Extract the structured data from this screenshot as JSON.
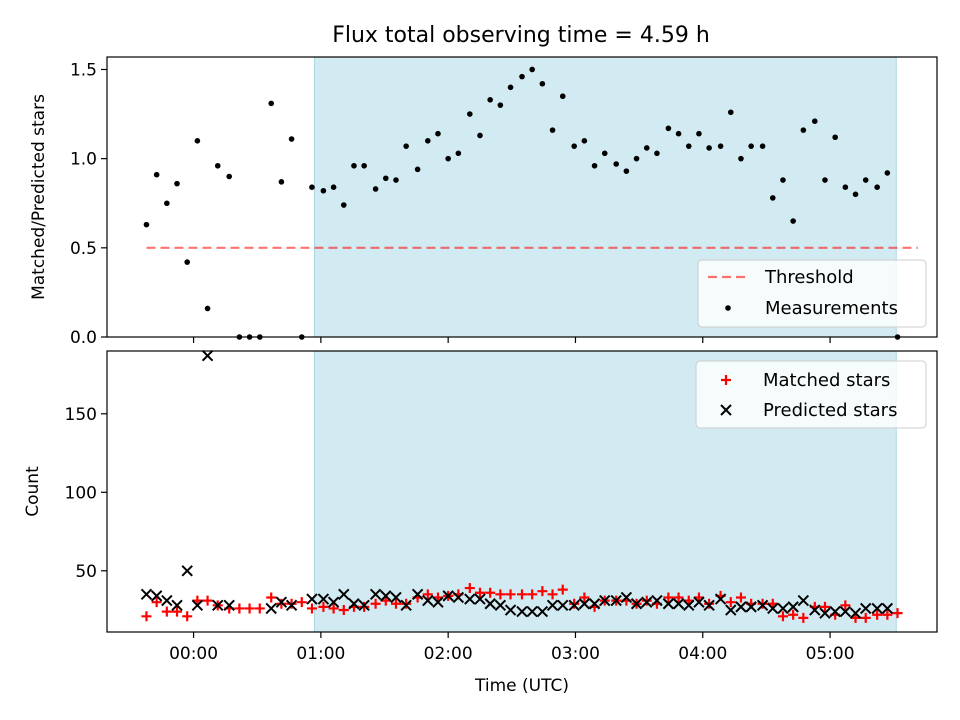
{
  "title": "Flux total observing time = 4.59 h",
  "colors": {
    "shade": "#add8e6",
    "threshold": "#ff0000",
    "measurements": "#000000",
    "matched": "#ff0000",
    "predicted": "#000000"
  },
  "chart_data": [
    {
      "type": "scatter",
      "ylabel": "Matched/Predicted stars",
      "xlim": [
        -0.68,
        5.84
      ],
      "ylim": [
        0,
        1.57
      ],
      "yticks": [
        0.0,
        0.5,
        1.0,
        1.5
      ],
      "ytick_labels": [
        "0.0",
        "0.5",
        "1.0",
        "1.5"
      ],
      "shaded_x_range": [
        0.95,
        5.52
      ],
      "threshold": {
        "name": "Threshold",
        "value": 0.5,
        "x_range": [
          -0.37,
          5.69
        ]
      },
      "legend": {
        "location": "lower-right",
        "entries": [
          "Threshold",
          "Measurements"
        ]
      },
      "series": [
        {
          "name": "Measurements",
          "marker": "dot",
          "points": [
            [
              -0.37,
              0.63
            ],
            [
              -0.29,
              0.91
            ],
            [
              -0.21,
              0.75
            ],
            [
              -0.13,
              0.86
            ],
            [
              -0.05,
              0.42
            ],
            [
              0.03,
              1.1
            ],
            [
              0.11,
              0.16
            ],
            [
              0.19,
              0.96
            ],
            [
              0.28,
              0.9
            ],
            [
              0.36,
              0.0
            ],
            [
              0.44,
              0.0
            ],
            [
              0.52,
              0.0
            ],
            [
              0.61,
              1.31
            ],
            [
              0.69,
              0.87
            ],
            [
              0.77,
              1.11
            ],
            [
              0.85,
              0.0
            ],
            [
              0.93,
              0.84
            ],
            [
              1.02,
              0.82
            ],
            [
              1.1,
              0.84
            ],
            [
              1.18,
              0.74
            ],
            [
              1.26,
              0.96
            ],
            [
              1.34,
              0.96
            ],
            [
              1.43,
              0.83
            ],
            [
              1.51,
              0.89
            ],
            [
              1.59,
              0.88
            ],
            [
              1.67,
              1.07
            ],
            [
              1.76,
              0.94
            ],
            [
              1.84,
              1.1
            ],
            [
              1.92,
              1.14
            ],
            [
              2.0,
              1.0
            ],
            [
              2.08,
              1.03
            ],
            [
              2.17,
              1.25
            ],
            [
              2.25,
              1.13
            ],
            [
              2.33,
              1.33
            ],
            [
              2.41,
              1.3
            ],
            [
              2.49,
              1.4
            ],
            [
              2.58,
              1.46
            ],
            [
              2.66,
              1.5
            ],
            [
              2.74,
              1.42
            ],
            [
              2.82,
              1.16
            ],
            [
              2.9,
              1.35
            ],
            [
              2.99,
              1.07
            ],
            [
              3.07,
              1.1
            ],
            [
              3.15,
              0.96
            ],
            [
              3.23,
              1.03
            ],
            [
              3.32,
              0.97
            ],
            [
              3.4,
              0.93
            ],
            [
              3.48,
              1.0
            ],
            [
              3.56,
              1.06
            ],
            [
              3.64,
              1.03
            ],
            [
              3.73,
              1.17
            ],
            [
              3.81,
              1.14
            ],
            [
              3.89,
              1.07
            ],
            [
              3.97,
              1.14
            ],
            [
              4.05,
              1.06
            ],
            [
              4.14,
              1.07
            ],
            [
              4.22,
              1.26
            ],
            [
              4.3,
              1.0
            ],
            [
              4.38,
              1.07
            ],
            [
              4.47,
              1.07
            ],
            [
              4.55,
              0.78
            ],
            [
              4.63,
              0.88
            ],
            [
              4.71,
              0.65
            ],
            [
              4.79,
              1.16
            ],
            [
              4.88,
              1.21
            ],
            [
              4.96,
              0.88
            ],
            [
              5.04,
              1.12
            ],
            [
              5.12,
              0.84
            ],
            [
              5.2,
              0.8
            ],
            [
              5.28,
              0.88
            ],
            [
              5.37,
              0.84
            ],
            [
              5.45,
              0.92
            ],
            [
              5.53,
              0.0
            ]
          ]
        }
      ]
    },
    {
      "type": "scatter",
      "xlabel": "Time (UTC)",
      "ylabel": "Count",
      "xlim": [
        -0.68,
        5.84
      ],
      "ylim": [
        11,
        190
      ],
      "xticks": [
        0,
        1,
        2,
        3,
        4,
        5
      ],
      "xtick_labels": [
        "00:00",
        "01:00",
        "02:00",
        "03:00",
        "04:00",
        "05:00"
      ],
      "yticks": [
        50,
        100,
        150
      ],
      "ytick_labels": [
        "50",
        "100",
        "150"
      ],
      "shaded_x_range": [
        0.95,
        5.52
      ],
      "legend": {
        "location": "upper-right",
        "entries": [
          "Matched stars",
          "Predicted stars"
        ]
      },
      "series": [
        {
          "name": "Matched stars",
          "marker": "plus",
          "points": [
            [
              -0.37,
              21
            ],
            [
              -0.29,
              30
            ],
            [
              -0.21,
              24
            ],
            [
              -0.13,
              24
            ],
            [
              -0.05,
              21
            ],
            [
              0.03,
              31
            ],
            [
              0.11,
              31
            ],
            [
              0.19,
              28
            ],
            [
              0.28,
              26
            ],
            [
              0.36,
              26
            ],
            [
              0.44,
              26
            ],
            [
              0.52,
              26
            ],
            [
              0.61,
              33
            ],
            [
              0.69,
              29
            ],
            [
              0.77,
              29
            ],
            [
              0.85,
              30
            ],
            [
              0.93,
              26
            ],
            [
              1.02,
              27
            ],
            [
              1.1,
              26
            ],
            [
              1.18,
              25
            ],
            [
              1.26,
              27
            ],
            [
              1.34,
              27
            ],
            [
              1.43,
              29
            ],
            [
              1.51,
              31
            ],
            [
              1.59,
              29
            ],
            [
              1.67,
              29
            ],
            [
              1.76,
              33
            ],
            [
              1.84,
              35
            ],
            [
              1.92,
              33
            ],
            [
              2.0,
              34
            ],
            [
              2.08,
              35
            ],
            [
              2.17,
              39
            ],
            [
              2.25,
              36
            ],
            [
              2.33,
              36
            ],
            [
              2.41,
              35
            ],
            [
              2.49,
              35
            ],
            [
              2.58,
              35
            ],
            [
              2.66,
              35
            ],
            [
              2.74,
              37
            ],
            [
              2.82,
              35
            ],
            [
              2.9,
              38
            ],
            [
              2.99,
              29
            ],
            [
              3.07,
              33
            ],
            [
              3.15,
              27
            ],
            [
              3.23,
              31
            ],
            [
              3.32,
              31
            ],
            [
              3.4,
              31
            ],
            [
              3.48,
              29
            ],
            [
              3.56,
              31
            ],
            [
              3.64,
              29
            ],
            [
              3.73,
              33
            ],
            [
              3.81,
              33
            ],
            [
              3.89,
              31
            ],
            [
              3.97,
              33
            ],
            [
              4.05,
              29
            ],
            [
              4.14,
              34
            ],
            [
              4.22,
              30
            ],
            [
              4.3,
              33
            ],
            [
              4.38,
              29
            ],
            [
              4.47,
              29
            ],
            [
              4.55,
              29
            ],
            [
              4.63,
              21
            ],
            [
              4.71,
              22
            ],
            [
              4.79,
              20
            ],
            [
              4.88,
              27
            ],
            [
              4.96,
              27
            ],
            [
              5.04,
              22
            ],
            [
              5.12,
              28
            ],
            [
              5.2,
              20
            ],
            [
              5.28,
              20
            ],
            [
              5.37,
              22
            ],
            [
              5.45,
              22
            ],
            [
              5.53,
              23
            ]
          ]
        },
        {
          "name": "Predicted stars",
          "marker": "x",
          "points": [
            [
              -0.37,
              35
            ],
            [
              -0.29,
              34
            ],
            [
              -0.21,
              31
            ],
            [
              -0.13,
              28
            ],
            [
              -0.05,
              50
            ],
            [
              0.03,
              28
            ],
            [
              0.11,
              187
            ],
            [
              0.19,
              28
            ],
            [
              0.28,
              28
            ],
            [
              0.61,
              26
            ],
            [
              0.69,
              30
            ],
            [
              0.77,
              28
            ],
            [
              0.93,
              32
            ],
            [
              1.02,
              32
            ],
            [
              1.1,
              30
            ],
            [
              1.18,
              35
            ],
            [
              1.26,
              29
            ],
            [
              1.34,
              28
            ],
            [
              1.43,
              35
            ],
            [
              1.51,
              34
            ],
            [
              1.59,
              33
            ],
            [
              1.67,
              28
            ],
            [
              1.76,
              35
            ],
            [
              1.84,
              31
            ],
            [
              1.92,
              30
            ],
            [
              2.0,
              34
            ],
            [
              2.08,
              33
            ],
            [
              2.17,
              32
            ],
            [
              2.25,
              32
            ],
            [
              2.33,
              29
            ],
            [
              2.41,
              28
            ],
            [
              2.49,
              25
            ],
            [
              2.58,
              24
            ],
            [
              2.66,
              24
            ],
            [
              2.74,
              24
            ],
            [
              2.82,
              28
            ],
            [
              2.9,
              28
            ],
            [
              2.99,
              28
            ],
            [
              3.07,
              29
            ],
            [
              3.15,
              29
            ],
            [
              3.23,
              31
            ],
            [
              3.32,
              31
            ],
            [
              3.4,
              33
            ],
            [
              3.48,
              29
            ],
            [
              3.56,
              30
            ],
            [
              3.64,
              31
            ],
            [
              3.73,
              29
            ],
            [
              3.81,
              29
            ],
            [
              3.89,
              28
            ],
            [
              3.97,
              30
            ],
            [
              4.05,
              28
            ],
            [
              4.14,
              32
            ],
            [
              4.22,
              25
            ],
            [
              4.3,
              27
            ],
            [
              4.38,
              27
            ],
            [
              4.47,
              28
            ],
            [
              4.55,
              26
            ],
            [
              4.63,
              26
            ],
            [
              4.71,
              27
            ],
            [
              4.79,
              31
            ],
            [
              4.88,
              25
            ],
            [
              4.96,
              23
            ],
            [
              5.04,
              24
            ],
            [
              5.12,
              24
            ],
            [
              5.2,
              23
            ],
            [
              5.28,
              26
            ],
            [
              5.37,
              26
            ],
            [
              5.45,
              26
            ]
          ]
        }
      ]
    }
  ]
}
